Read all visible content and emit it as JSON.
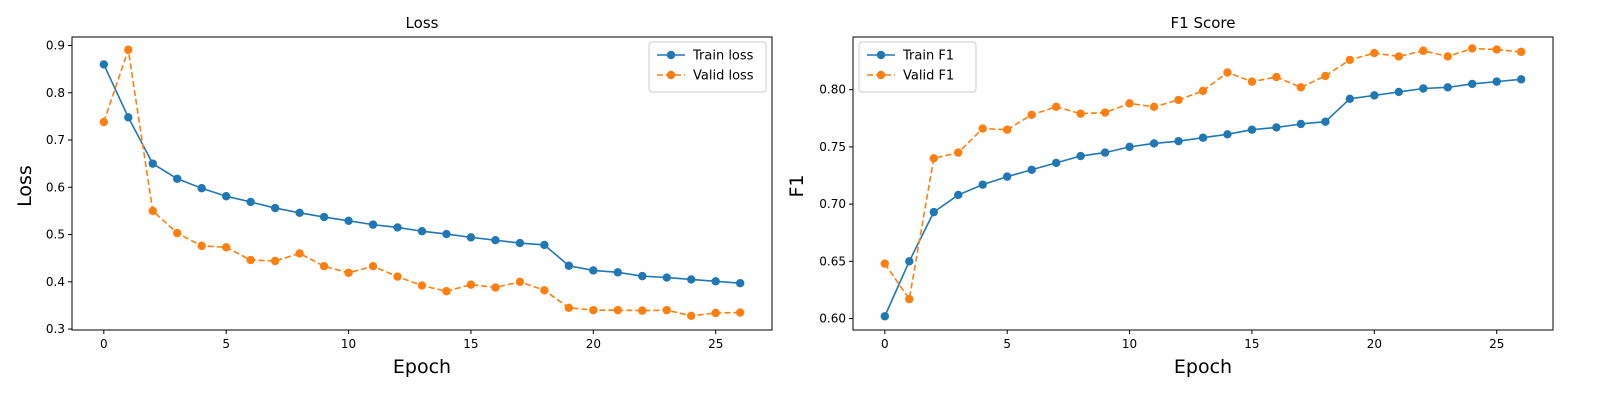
{
  "chart_data": [
    {
      "type": "line",
      "title": "Loss",
      "xlabel": "Epoch",
      "ylabel": "Loss",
      "xlim": [
        -1.3,
        27.3
      ],
      "ylim": [
        0.298,
        0.918
      ],
      "xticks": [
        0,
        5,
        10,
        15,
        20,
        25
      ],
      "yticks": [
        0.3,
        0.4,
        0.5,
        0.6,
        0.7,
        0.8,
        0.9
      ],
      "x": [
        0,
        1,
        2,
        3,
        4,
        5,
        6,
        7,
        8,
        9,
        10,
        11,
        12,
        13,
        14,
        15,
        16,
        17,
        18,
        19,
        20,
        21,
        22,
        23,
        24,
        25,
        26
      ],
      "legend_position": "top-right",
      "grid": false,
      "series": [
        {
          "name": "Train loss",
          "color": "#1f77b4",
          "dashed": false,
          "values": [
            0.86,
            0.748,
            0.65,
            0.618,
            0.598,
            0.581,
            0.569,
            0.556,
            0.546,
            0.537,
            0.529,
            0.521,
            0.515,
            0.507,
            0.501,
            0.494,
            0.488,
            0.482,
            0.478,
            0.434,
            0.424,
            0.42,
            0.412,
            0.409,
            0.405,
            0.401,
            0.397
          ]
        },
        {
          "name": "Valid loss",
          "color": "#ff7f0e",
          "dashed": true,
          "values": [
            0.738,
            0.891,
            0.55,
            0.503,
            0.476,
            0.473,
            0.446,
            0.444,
            0.46,
            0.433,
            0.419,
            0.433,
            0.411,
            0.392,
            0.38,
            0.394,
            0.388,
            0.4,
            0.382,
            0.345,
            0.34,
            0.34,
            0.339,
            0.34,
            0.328,
            0.334,
            0.335
          ]
        }
      ]
    },
    {
      "type": "line",
      "title": "F1 Score",
      "xlabel": "Epoch",
      "ylabel": "F1",
      "xlim": [
        -1.3,
        27.3
      ],
      "ylim": [
        0.59,
        0.846
      ],
      "xticks": [
        0,
        5,
        10,
        15,
        20,
        25
      ],
      "yticks": [
        0.6,
        0.65,
        0.7,
        0.75,
        0.8
      ],
      "ytick_format": 2,
      "x": [
        0,
        1,
        2,
        3,
        4,
        5,
        6,
        7,
        8,
        9,
        10,
        11,
        12,
        13,
        14,
        15,
        16,
        17,
        18,
        19,
        20,
        21,
        22,
        23,
        24,
        25,
        26
      ],
      "legend_position": "top-left",
      "grid": false,
      "series": [
        {
          "name": "Train F1",
          "color": "#1f77b4",
          "dashed": false,
          "values": [
            0.602,
            0.65,
            0.693,
            0.708,
            0.717,
            0.724,
            0.73,
            0.736,
            0.742,
            0.745,
            0.75,
            0.753,
            0.755,
            0.758,
            0.761,
            0.765,
            0.767,
            0.77,
            0.772,
            0.792,
            0.795,
            0.798,
            0.801,
            0.802,
            0.805,
            0.807,
            0.809
          ]
        },
        {
          "name": "Valid F1",
          "color": "#ff7f0e",
          "dashed": true,
          "values": [
            0.648,
            0.617,
            0.74,
            0.745,
            0.766,
            0.765,
            0.778,
            0.785,
            0.779,
            0.78,
            0.788,
            0.785,
            0.791,
            0.799,
            0.815,
            0.807,
            0.811,
            0.802,
            0.812,
            0.826,
            0.832,
            0.829,
            0.834,
            0.829,
            0.836,
            0.835,
            0.833
          ]
        }
      ]
    }
  ]
}
